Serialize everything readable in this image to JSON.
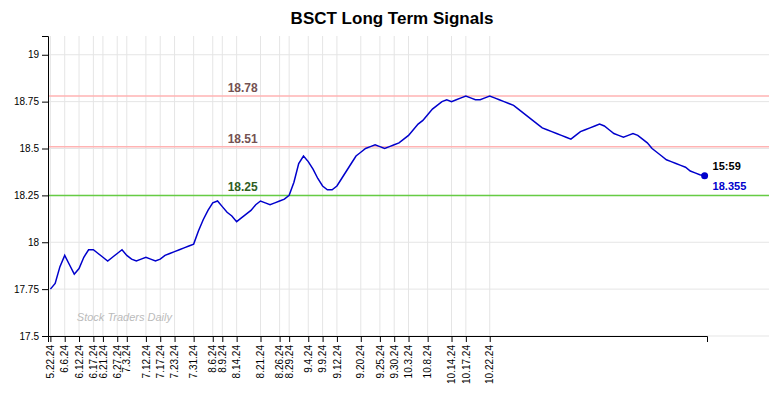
{
  "chart_data": {
    "type": "line",
    "title": "BSCT Long Term Signals",
    "color": "#0000cc",
    "grid": true,
    "ylim": [
      17.5,
      19.1
    ],
    "yticks": [
      17.5,
      17.75,
      18,
      18.25,
      18.5,
      18.75,
      19
    ],
    "categories": [
      "5.22.24",
      null,
      null,
      "6.6.24",
      null,
      null,
      "6.12.24",
      null,
      null,
      "6.17.24",
      null,
      "6.21.24",
      null,
      null,
      "6.27.24",
      null,
      "7.3.24",
      null,
      null,
      null,
      "7.12.24",
      null,
      null,
      "7.17.24",
      null,
      null,
      "7.23.24",
      null,
      null,
      null,
      "7.31.24",
      null,
      null,
      null,
      "8.6.24",
      null,
      "8.9.24",
      null,
      null,
      "8.14.24",
      null,
      null,
      null,
      null,
      "8.21.24",
      null,
      null,
      null,
      "8.26.24",
      null,
      "8.29.24",
      null,
      null,
      null,
      "9.4.24",
      null,
      null,
      "9.9.24",
      null,
      null,
      "9.12.24",
      null,
      null,
      null,
      null,
      "9.20.24",
      null,
      null,
      null,
      "9.25.24",
      null,
      null,
      "9.30.24",
      null,
      null,
      "10.3.24",
      null,
      null,
      null,
      "10.8.24",
      null,
      null,
      null,
      null,
      "10.14.24",
      null,
      null,
      "10.17.24",
      null,
      null,
      null,
      null,
      "10.22.24",
      null,
      null,
      null,
      null,
      null,
      null,
      null,
      null,
      null,
      null,
      null,
      null,
      null,
      null,
      null,
      null,
      null,
      null,
      null,
      null,
      null,
      null,
      null,
      null,
      null,
      null,
      null,
      null,
      null,
      null,
      null,
      null,
      null,
      null,
      null,
      null,
      null,
      null,
      null,
      null,
      null,
      null,
      null,
      null,
      null
    ],
    "values": [
      17.75,
      17.78,
      17.87,
      17.93,
      17.88,
      17.83,
      17.86,
      17.92,
      17.96,
      17.96,
      17.94,
      17.92,
      17.9,
      17.92,
      17.94,
      17.96,
      17.93,
      17.91,
      17.9,
      17.91,
      17.92,
      17.91,
      17.9,
      17.91,
      17.93,
      17.94,
      17.95,
      17.96,
      17.97,
      17.98,
      17.99,
      18.06,
      18.12,
      18.17,
      18.21,
      18.22,
      18.19,
      18.16,
      18.14,
      18.11,
      18.13,
      18.15,
      18.17,
      18.2,
      18.22,
      18.21,
      18.2,
      18.21,
      18.22,
      18.23,
      18.25,
      18.32,
      18.42,
      18.46,
      18.43,
      18.39,
      18.34,
      18.3,
      18.28,
      18.28,
      18.3,
      18.34,
      18.38,
      18.42,
      18.46,
      18.48,
      18.5,
      18.51,
      18.52,
      18.51,
      18.5,
      18.51,
      18.52,
      18.53,
      18.55,
      18.57,
      18.6,
      18.63,
      18.65,
      18.68,
      18.71,
      18.73,
      18.75,
      18.76,
      18.75,
      18.76,
      18.77,
      18.78,
      18.77,
      18.76,
      18.76,
      18.77,
      18.78,
      18.77,
      18.76,
      18.75,
      18.74,
      18.73,
      18.71,
      18.69,
      18.67,
      18.65,
      18.63,
      18.61,
      18.6,
      18.59,
      18.58,
      18.57,
      18.56,
      18.55,
      18.57,
      18.59,
      18.6,
      18.61,
      18.62,
      18.63,
      18.62,
      18.6,
      18.58,
      18.57,
      18.56,
      18.57,
      18.58,
      18.57,
      18.55,
      18.53,
      18.5,
      18.48,
      18.46,
      18.44,
      18.43,
      18.42,
      18.41,
      18.4,
      18.38,
      18.37,
      18.36,
      18.355
    ],
    "reference_lines": [
      {
        "value": 18.78,
        "label": "18.78",
        "color": "#ffb3b3"
      },
      {
        "value": 18.51,
        "label": "18.51",
        "color": "#ffb3b3"
      },
      {
        "value": 18.25,
        "label": "18.25",
        "color": "#66cc44"
      }
    ],
    "annotations": [
      {
        "text": "15:59"
      },
      {
        "text": "18.355"
      }
    ],
    "watermark": "Stock Traders Daily"
  }
}
